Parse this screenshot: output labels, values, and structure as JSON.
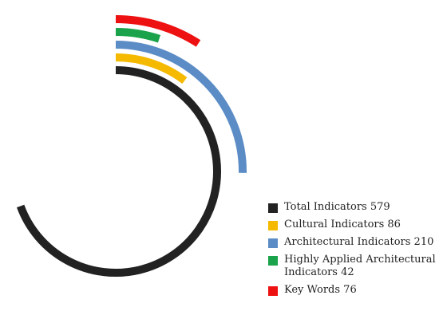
{
  "chart_data": {
    "type": "radial_bar",
    "title": "",
    "series": [
      {
        "name": "Total Indicators",
        "value": 579,
        "color": "#222222"
      },
      {
        "name": "Cultural Indicators",
        "value": 86,
        "color": "#f5b900"
      },
      {
        "name": "Architectural Indicators",
        "value": 210,
        "color": "#5b8cc6"
      },
      {
        "name": "Highly Applied Architectural Indicators",
        "value": 42,
        "color": "#1aa34a"
      },
      {
        "name": "Key Words",
        "value": 76,
        "color": "#ee1111"
      }
    ],
    "legend": [
      {
        "label": "Total Indicators 579",
        "icon": "square"
      },
      {
        "label": "Cultural Indicators 86",
        "icon": "square"
      },
      {
        "label": "Architectural Indicators 210",
        "icon": "square"
      },
      {
        "label": "Highly Applied Architectural Indicators 42",
        "icon": "square"
      },
      {
        "label": "Key Words 76",
        "icon": "square"
      }
    ],
    "legend_position": "bottom-right"
  }
}
